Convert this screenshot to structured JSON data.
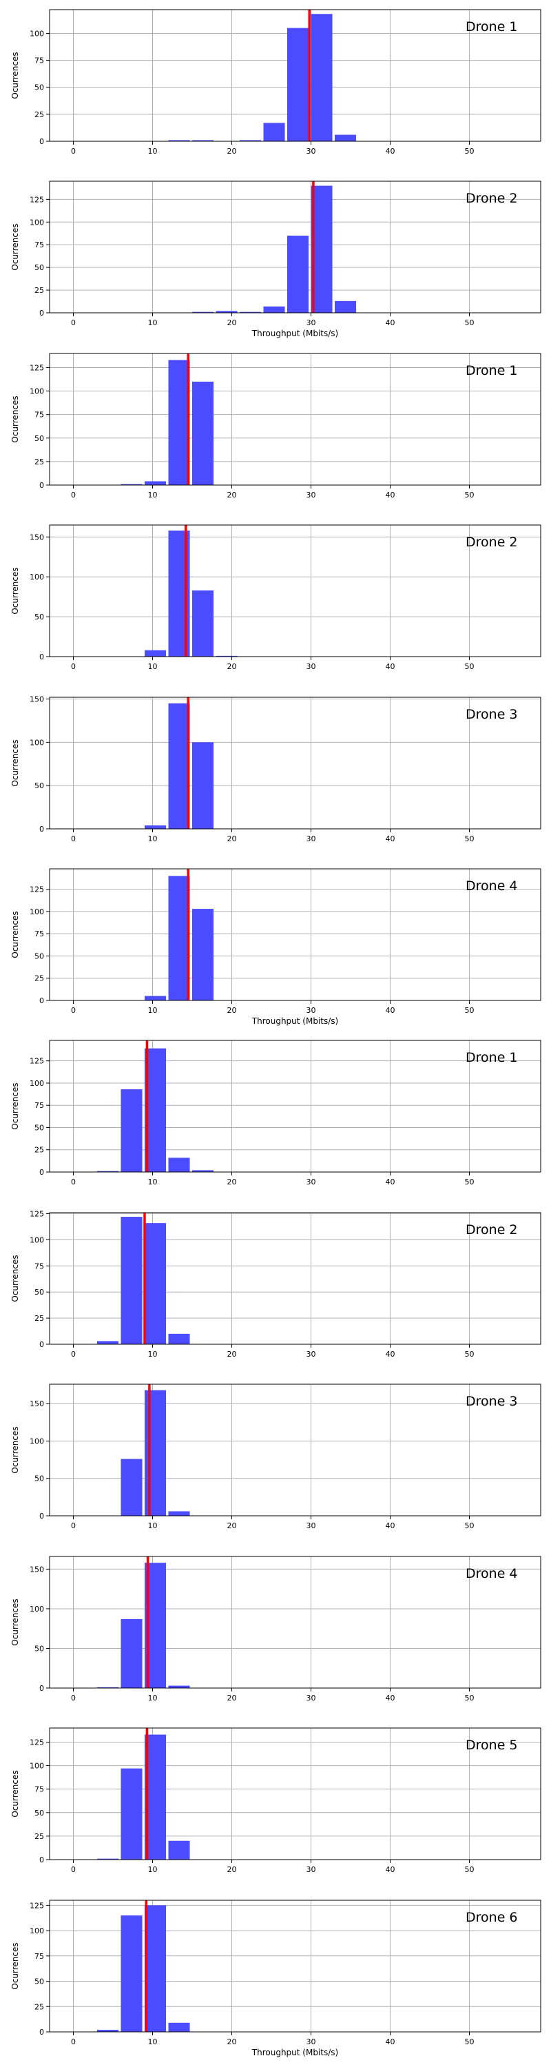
{
  "chart_data": [
    {
      "type": "bar",
      "title": "Drone 1",
      "xlabel": "",
      "ylabel": "Ocurrences",
      "xlim": [
        -3,
        59
      ],
      "ylim": [
        0,
        122
      ],
      "xticks": [
        0,
        10,
        20,
        30,
        40,
        50
      ],
      "yticks": [
        0,
        25,
        50,
        75,
        100
      ],
      "bin_left": [
        9,
        12,
        15,
        18,
        21,
        24,
        27,
        30,
        33
      ],
      "values": [
        0,
        1,
        1,
        0,
        1,
        17,
        105,
        118,
        6
      ],
      "mean_line": 29.8,
      "grid": true,
      "legend": "none"
    },
    {
      "type": "bar",
      "title": "Drone 2",
      "xlabel": "Throughput (Mbits/s)",
      "ylabel": "Ocurrences",
      "xlim": [
        -3,
        59
      ],
      "ylim": [
        0,
        145
      ],
      "xticks": [
        0,
        10,
        20,
        30,
        40,
        50
      ],
      "yticks": [
        0,
        25,
        50,
        75,
        100,
        125
      ],
      "bin_left": [
        12,
        15,
        18,
        21,
        24,
        27,
        30,
        33
      ],
      "values": [
        0,
        1,
        2,
        1,
        7,
        85,
        140,
        13
      ],
      "mean_line": 30.3,
      "grid": true,
      "legend": "none"
    },
    {
      "type": "bar",
      "title": "Drone 1",
      "xlabel": "",
      "ylabel": "Ocurrences",
      "xlim": [
        -3,
        59
      ],
      "ylim": [
        0,
        140
      ],
      "xticks": [
        0,
        10,
        20,
        30,
        40,
        50
      ],
      "yticks": [
        0,
        25,
        50,
        75,
        100,
        125
      ],
      "bin_left": [
        6,
        9,
        12,
        15,
        18
      ],
      "values": [
        1,
        4,
        133,
        110,
        0
      ],
      "mean_line": 14.5,
      "grid": true,
      "legend": "none"
    },
    {
      "type": "bar",
      "title": "Drone 2",
      "xlabel": "",
      "ylabel": "Ocurrences",
      "xlim": [
        -3,
        59
      ],
      "ylim": [
        0,
        165
      ],
      "xticks": [
        0,
        10,
        20,
        30,
        40,
        50
      ],
      "yticks": [
        0,
        50,
        100,
        150
      ],
      "bin_left": [
        9,
        12,
        15,
        18
      ],
      "values": [
        8,
        158,
        83,
        1
      ],
      "mean_line": 14.2,
      "grid": true,
      "legend": "none"
    },
    {
      "type": "bar",
      "title": "Drone 3",
      "xlabel": "",
      "ylabel": "Ocurrences",
      "xlim": [
        -3,
        59
      ],
      "ylim": [
        0,
        152
      ],
      "xticks": [
        0,
        10,
        20,
        30,
        40,
        50
      ],
      "yticks": [
        0,
        50,
        100,
        150
      ],
      "bin_left": [
        9,
        12,
        15
      ],
      "values": [
        4,
        145,
        100
      ],
      "mean_line": 14.5,
      "grid": true,
      "legend": "none"
    },
    {
      "type": "bar",
      "title": "Drone 4",
      "xlabel": "Throughput (Mbits/s)",
      "ylabel": "Ocurrences",
      "xlim": [
        -3,
        59
      ],
      "ylim": [
        0,
        148
      ],
      "xticks": [
        0,
        10,
        20,
        30,
        40,
        50
      ],
      "yticks": [
        0,
        25,
        50,
        75,
        100,
        125
      ],
      "bin_left": [
        9,
        12,
        15
      ],
      "values": [
        5,
        140,
        103
      ],
      "mean_line": 14.5,
      "grid": true,
      "legend": "none"
    },
    {
      "type": "bar",
      "title": "Drone 1",
      "xlabel": "",
      "ylabel": "Ocurrences",
      "xlim": [
        -3,
        59
      ],
      "ylim": [
        0,
        148
      ],
      "xticks": [
        0,
        10,
        20,
        30,
        40,
        50
      ],
      "yticks": [
        0,
        25,
        50,
        75,
        100,
        125
      ],
      "bin_left": [
        3,
        6,
        9,
        12,
        15
      ],
      "values": [
        1,
        93,
        139,
        16,
        2
      ],
      "mean_line": 9.3,
      "grid": true,
      "legend": "none"
    },
    {
      "type": "bar",
      "title": "Drone 2",
      "xlabel": "",
      "ylabel": "Ocurrences",
      "xlim": [
        -3,
        59
      ],
      "ylim": [
        0,
        126
      ],
      "xticks": [
        0,
        10,
        20,
        30,
        40,
        50
      ],
      "yticks": [
        0,
        25,
        50,
        75,
        100,
        125
      ],
      "bin_left": [
        3,
        6,
        9,
        12
      ],
      "values": [
        3,
        122,
        116,
        10
      ],
      "mean_line": 9.0,
      "grid": true,
      "legend": "none"
    },
    {
      "type": "bar",
      "title": "Drone 3",
      "xlabel": "",
      "ylabel": "Ocurrences",
      "xlim": [
        -3,
        59
      ],
      "ylim": [
        0,
        176
      ],
      "xticks": [
        0,
        10,
        20,
        30,
        40,
        50
      ],
      "yticks": [
        0,
        50,
        100,
        150
      ],
      "bin_left": [
        6,
        9,
        12
      ],
      "values": [
        76,
        168,
        6
      ],
      "mean_line": 9.6,
      "grid": true,
      "legend": "none"
    },
    {
      "type": "bar",
      "title": "Drone 4",
      "xlabel": "",
      "ylabel": "Ocurrences",
      "xlim": [
        -3,
        59
      ],
      "ylim": [
        0,
        166
      ],
      "xticks": [
        0,
        10,
        20,
        30,
        40,
        50
      ],
      "yticks": [
        0,
        50,
        100,
        150
      ],
      "bin_left": [
        3,
        6,
        9,
        12
      ],
      "values": [
        1,
        87,
        158,
        3
      ],
      "mean_line": 9.4,
      "grid": true,
      "legend": "none"
    },
    {
      "type": "bar",
      "title": "Drone 5",
      "xlabel": "",
      "ylabel": "Ocurrences",
      "xlim": [
        -3,
        59
      ],
      "ylim": [
        0,
        140
      ],
      "xticks": [
        0,
        10,
        20,
        30,
        40,
        50
      ],
      "yticks": [
        0,
        25,
        50,
        75,
        100,
        125
      ],
      "bin_left": [
        3,
        6,
        9,
        12
      ],
      "values": [
        1,
        97,
        133,
        20
      ],
      "mean_line": 9.3,
      "grid": true,
      "legend": "none"
    },
    {
      "type": "bar",
      "title": "Drone 6",
      "xlabel": "Throughput (Mbits/s)",
      "ylabel": "Ocurrences",
      "xlim": [
        -3,
        59
      ],
      "ylim": [
        0,
        130
      ],
      "xticks": [
        0,
        10,
        20,
        30,
        40,
        50
      ],
      "yticks": [
        0,
        25,
        50,
        75,
        100,
        125
      ],
      "bin_left": [
        3,
        6,
        9,
        12
      ],
      "values": [
        2,
        115,
        125,
        9
      ],
      "mean_line": 9.2,
      "grid": true,
      "legend": "none"
    }
  ],
  "colors": {
    "bar": "#4b4bff",
    "mean_line": "#ff0000",
    "grid": "#b0b0b0"
  }
}
